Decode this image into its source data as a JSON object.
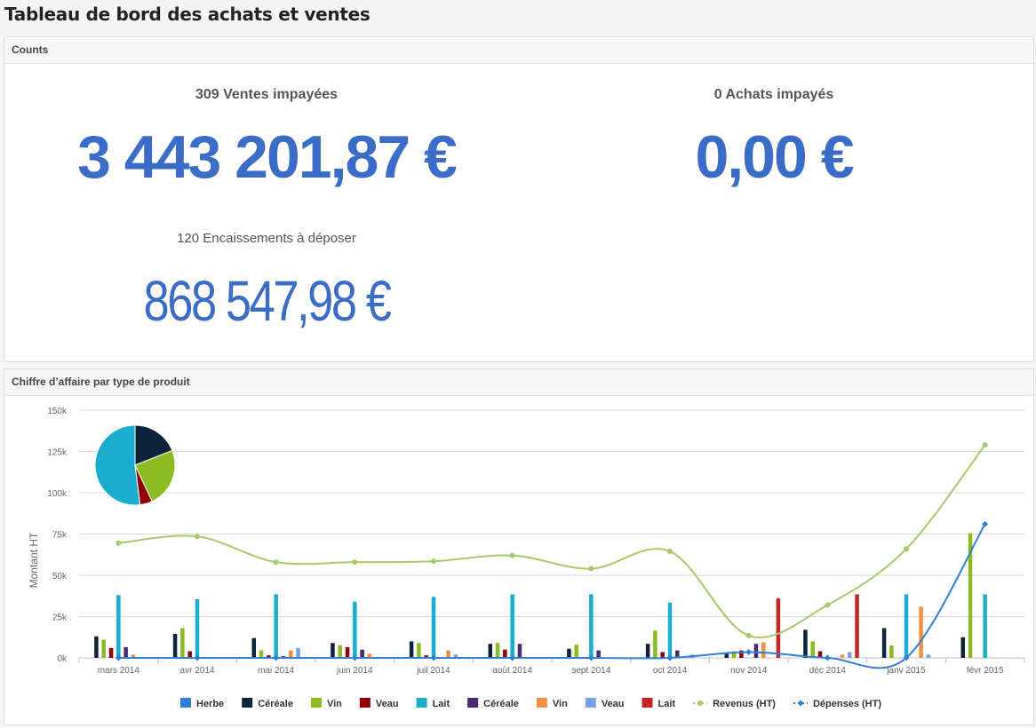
{
  "page": {
    "title": "Tableau de bord des achats et ventes"
  },
  "counts": {
    "header": "Counts",
    "sales_unpaid_label": "309 Ventes impayées",
    "sales_unpaid_value": "3 443 201,87 €",
    "purchases_unpaid_label": "0 Achats impayés",
    "purchases_unpaid_value": "0,00 €",
    "deposits_label": "120 Encaissements à déposer",
    "deposits_value": "868 547,98 €"
  },
  "chart_panel": {
    "header": "Chiffre d’affaire par type de produit"
  },
  "chart_data": {
    "type": "bar",
    "ylabel": "Montant HT",
    "ylim": [
      0,
      150000
    ],
    "yticks": [
      0,
      25000,
      50000,
      75000,
      100000,
      125000,
      150000
    ],
    "ytick_labels": [
      "0k",
      "25k",
      "50k",
      "75k",
      "100k",
      "125k",
      "150k"
    ],
    "categories": [
      "mars 2014",
      "avr 2014",
      "mai 2014",
      "juin 2014",
      "juil 2014",
      "août 2014",
      "sept 2014",
      "oct 2014",
      "nov 2014",
      "déc 2014",
      "janv 2015",
      "févr 2015"
    ],
    "series": [
      {
        "name": "Herbe",
        "kind": "bar",
        "color": "#2f7ed8",
        "values": [
          0,
          0,
          0,
          0,
          0,
          0,
          0,
          0,
          0,
          0,
          0,
          0
        ]
      },
      {
        "name": "Céréale",
        "kind": "bar",
        "color": "#0d233a",
        "values": [
          13000,
          14500,
          12000,
          9000,
          10000,
          8500,
          5500,
          8500,
          3000,
          17000,
          18000,
          12500
        ]
      },
      {
        "name": "Vin",
        "kind": "bar",
        "color": "#8bbc21",
        "values": [
          11000,
          18000,
          4500,
          7500,
          9000,
          9000,
          8000,
          16500,
          4000,
          10000,
          7500,
          75500
        ]
      },
      {
        "name": "Veau",
        "kind": "bar",
        "color": "#910000",
        "values": [
          6000,
          4000,
          1500,
          6500,
          1500,
          5000,
          0,
          3500,
          4500,
          4000,
          0,
          0
        ]
      },
      {
        "name": "Lait",
        "kind": "bar",
        "color": "#1aadce",
        "values": [
          38000,
          35500,
          38500,
          34000,
          37000,
          38500,
          38500,
          33500,
          0,
          0,
          38500,
          38500
        ]
      },
      {
        "name": "Céréale",
        "kind": "bar",
        "color": "#492970",
        "values": [
          6500,
          0,
          1000,
          5000,
          0,
          8500,
          4500,
          4500,
          8500,
          0,
          0,
          0
        ]
      },
      {
        "name": "Vin",
        "kind": "bar",
        "color": "#f28f43",
        "values": [
          2000,
          0,
          4500,
          2500,
          4500,
          0,
          0,
          0,
          9500,
          2000,
          31000,
          0
        ]
      },
      {
        "name": "Veau",
        "kind": "bar",
        "color": "#77a1e5",
        "values": [
          0,
          0,
          6000,
          0,
          2000,
          0,
          0,
          2000,
          0,
          3500,
          2000,
          0
        ]
      },
      {
        "name": "Lait",
        "kind": "bar",
        "color": "#c42525",
        "values": [
          0,
          0,
          0,
          0,
          0,
          0,
          0,
          0,
          36000,
          38500,
          0,
          0
        ]
      },
      {
        "name": "Revenus (HT)",
        "kind": "line",
        "color": "#a6c96a",
        "values": [
          69500,
          73500,
          58000,
          58000,
          58500,
          62000,
          54000,
          64500,
          13500,
          32000,
          66000,
          129000
        ]
      },
      {
        "name": "Dépenses (HT)",
        "kind": "line",
        "color": "#2f7ed8",
        "values": [
          0,
          0,
          0,
          0,
          0,
          0,
          0,
          0,
          3500,
          0,
          0,
          81000
        ]
      }
    ],
    "pie": {
      "type": "pie",
      "slices": [
        {
          "name": "Céréale",
          "value": 19,
          "color": "#0d233a"
        },
        {
          "name": "Vin",
          "value": 24,
          "color": "#8bbc21"
        },
        {
          "name": "Veau",
          "value": 5,
          "color": "#910000"
        },
        {
          "name": "Lait",
          "value": 52,
          "color": "#1aadce"
        }
      ]
    },
    "legend_position": "bottom-center",
    "grid": true
  }
}
